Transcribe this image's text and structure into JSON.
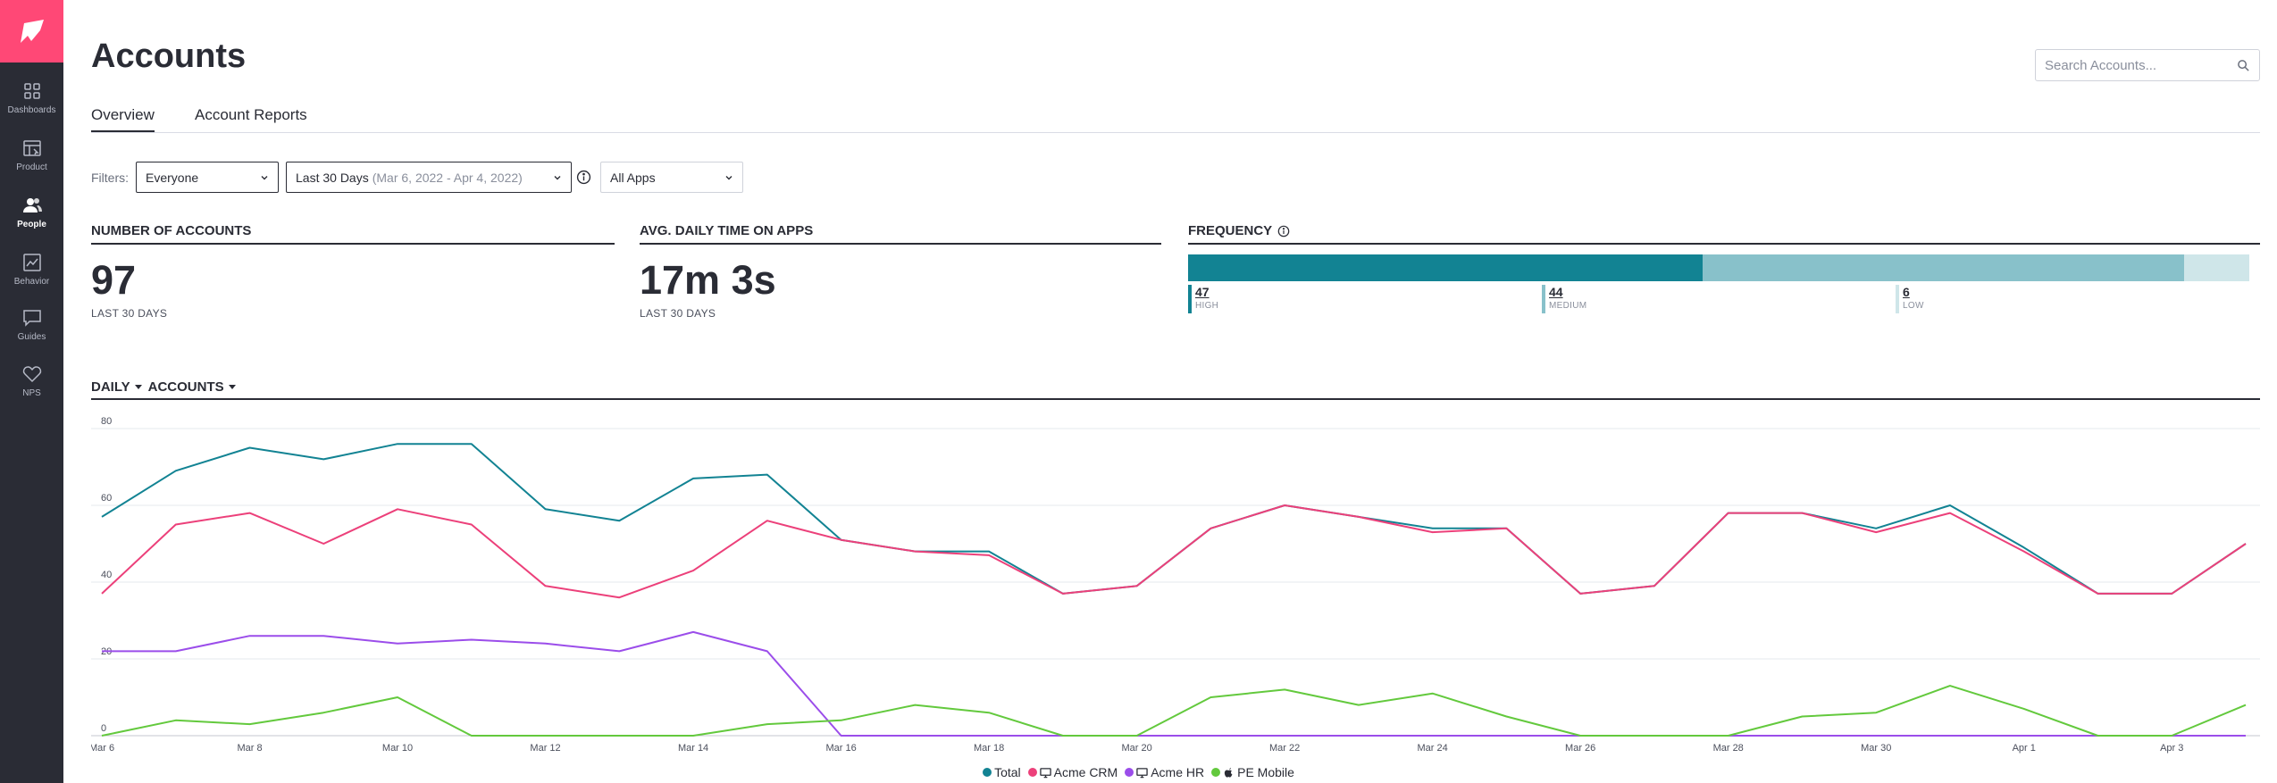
{
  "sidebar": {
    "items": [
      {
        "label": "Dashboards",
        "icon": "grid-icon"
      },
      {
        "label": "Product",
        "icon": "product-icon"
      },
      {
        "label": "People",
        "icon": "people-icon",
        "active": true
      },
      {
        "label": "Behavior",
        "icon": "trend-icon"
      },
      {
        "label": "Guides",
        "icon": "chat-icon"
      },
      {
        "label": "NPS",
        "icon": "heart-icon"
      }
    ],
    "brand_color": "#ff4876"
  },
  "header": {
    "title": "Accounts",
    "search_placeholder": "Search Accounts..."
  },
  "tabs": [
    {
      "label": "Overview",
      "active": true
    },
    {
      "label": "Account Reports",
      "active": false
    }
  ],
  "filters": {
    "label": "Filters:",
    "segment": "Everyone",
    "date_range": "Last 30 Days",
    "date_detail": "(Mar 6, 2022 - Apr 4, 2022)",
    "apps": "All Apps"
  },
  "metrics": {
    "accounts": {
      "title": "NUMBER OF ACCOUNTS",
      "value": "97",
      "sub": "LAST 30 DAYS"
    },
    "time": {
      "title": "AVG. DAILY TIME ON APPS",
      "value": "17m 3s",
      "sub": "LAST 30 DAYS"
    },
    "frequency": {
      "title": "FREQUENCY",
      "segments": [
        {
          "count": "47",
          "label": "HIGH",
          "value": 47,
          "color": "#128393"
        },
        {
          "count": "44",
          "label": "MEDIUM",
          "value": 44,
          "color": "#88c1ca"
        },
        {
          "count": "6",
          "label": "LOW",
          "value": 6,
          "color": "#cfe6e9"
        }
      ]
    }
  },
  "chart_header": {
    "interval": "DAILY",
    "metric": "ACCOUNTS"
  },
  "chart_data": {
    "type": "line",
    "ylim": [
      0,
      80
    ],
    "yticks": [
      0,
      20,
      40,
      60,
      80
    ],
    "x": [
      "Mar 6",
      "Mar 7",
      "Mar 8",
      "Mar 9",
      "Mar 10",
      "Mar 11",
      "Mar 12",
      "Mar 13",
      "Mar 14",
      "Mar 15",
      "Mar 16",
      "Mar 17",
      "Mar 18",
      "Mar 19",
      "Mar 20",
      "Mar 21",
      "Mar 22",
      "Mar 23",
      "Mar 24",
      "Mar 25",
      "Mar 26",
      "Mar 27",
      "Mar 28",
      "Mar 29",
      "Mar 30",
      "Mar 31",
      "Apr 1",
      "Apr 2",
      "Apr 3",
      "Apr 4"
    ],
    "xtick_labels": [
      "Mar 6",
      "Mar 8",
      "Mar 10",
      "Mar 12",
      "Mar 14",
      "Mar 16",
      "Mar 18",
      "Mar 20",
      "Mar 22",
      "Mar 24",
      "Mar 26",
      "Mar 28",
      "Mar 30",
      "Apr 1",
      "Apr 3"
    ],
    "series": [
      {
        "name": "Total",
        "color": "#128393",
        "values": [
          57,
          69,
          75,
          72,
          76,
          76,
          59,
          56,
          67,
          68,
          51,
          48,
          48,
          37,
          39,
          54,
          60,
          57,
          54,
          54,
          37,
          39,
          58,
          58,
          54,
          60,
          49,
          37,
          37,
          50
        ]
      },
      {
        "name": "Acme CRM",
        "color": "#ec407a",
        "values": [
          37,
          55,
          58,
          50,
          59,
          55,
          39,
          36,
          43,
          56,
          51,
          48,
          47,
          37,
          39,
          54,
          60,
          57,
          53,
          54,
          37,
          39,
          58,
          58,
          53,
          58,
          48,
          37,
          37,
          50
        ]
      },
      {
        "name": "Acme HR",
        "color": "#9b4dea",
        "values": [
          22,
          22,
          26,
          26,
          24,
          25,
          24,
          22,
          27,
          22,
          0,
          0,
          0,
          0,
          0,
          0,
          0,
          0,
          0,
          0,
          0,
          0,
          0,
          0,
          0,
          0,
          0,
          0,
          0,
          0
        ]
      },
      {
        "name": "PE Mobile",
        "color": "#63c93d",
        "values": [
          0,
          4,
          3,
          6,
          10,
          0,
          0,
          0,
          0,
          3,
          4,
          8,
          6,
          0,
          0,
          10,
          12,
          8,
          11,
          5,
          0,
          0,
          0,
          5,
          6,
          13,
          7,
          0,
          0,
          8
        ]
      }
    ],
    "legend_position": "bottom"
  }
}
